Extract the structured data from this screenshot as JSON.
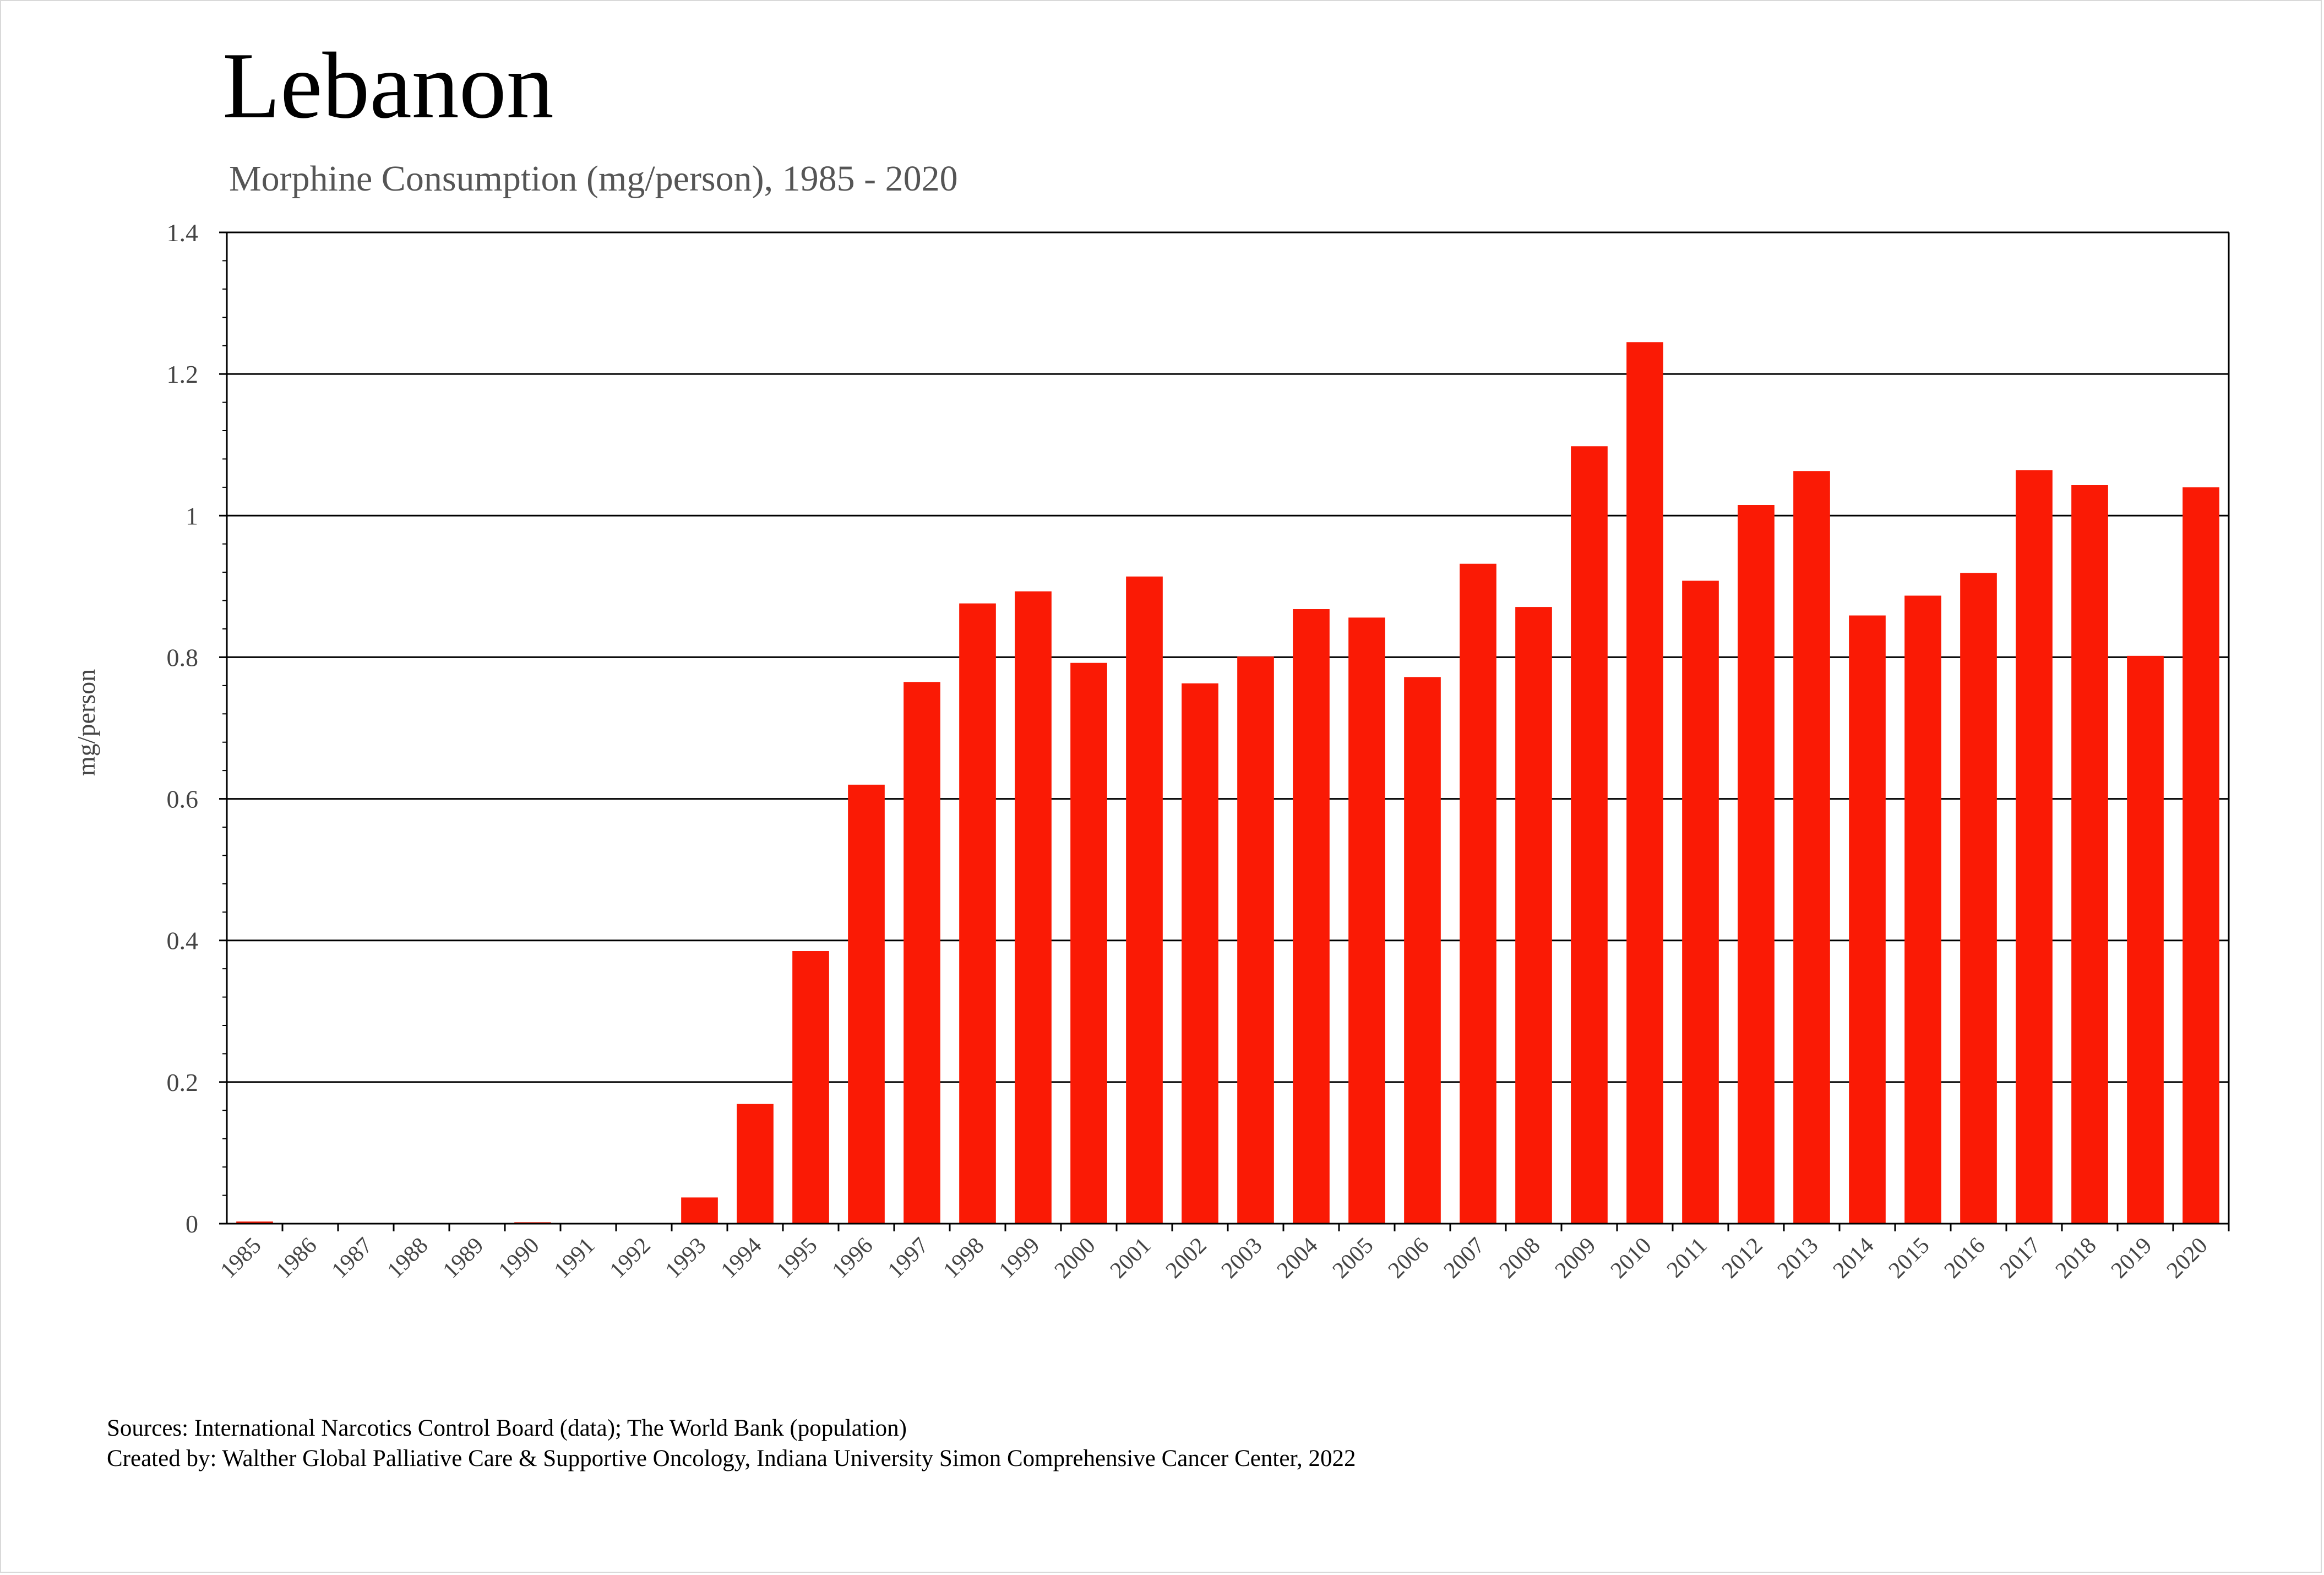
{
  "page": {
    "title": "Lebanon",
    "subtitle": "Morphine Consumption (mg/person), 1985 - 2020",
    "sources_line": "Sources: International Narcotics Control Board (data); The World Bank (population)",
    "credits_line": "Created by: Walther  Global Palliative Care & Supportive Oncology, Indiana University Simon Comprehensive Cancer Center, 2022"
  },
  "colors": {
    "bar": "#fa1a05",
    "gridline": "#000000",
    "axis": "#000000",
    "tick_text": "#444444"
  },
  "chart_data": {
    "type": "bar",
    "title": "Lebanon",
    "subtitle": "Morphine Consumption (mg/person), 1985 - 2020",
    "xlabel": "",
    "ylabel": "mg/person",
    "ylim": [
      0,
      1.4
    ],
    "yticks": [
      0,
      0.2,
      0.4,
      0.6,
      0.8,
      1,
      1.2,
      1.4
    ],
    "ytick_labels": [
      "0",
      "0.2",
      "0.4",
      "0.6",
      "0.8",
      "1",
      "1.2",
      "1.4"
    ],
    "grid": true,
    "legend": "none",
    "categories": [
      "1985",
      "1986",
      "1987",
      "1988",
      "1989",
      "1990",
      "1991",
      "1992",
      "1993",
      "1994",
      "1995",
      "1996",
      "1997",
      "1998",
      "1999",
      "2000",
      "2001",
      "2002",
      "2003",
      "2004",
      "2005",
      "2006",
      "2007",
      "2008",
      "2009",
      "2010",
      "2011",
      "2012",
      "2013",
      "2014",
      "2015",
      "2016",
      "2017",
      "2018",
      "2019",
      "2020"
    ],
    "series": [
      {
        "name": "Morphine Consumption (mg/person)",
        "values": [
          0.003,
          0,
          0,
          0,
          0,
          0.002,
          0,
          0,
          0.037,
          0.169,
          0.385,
          0.62,
          0.765,
          0.876,
          0.893,
          0.792,
          0.914,
          0.763,
          0.801,
          0.868,
          0.856,
          0.772,
          0.932,
          0.871,
          1.098,
          1.245,
          0.908,
          1.015,
          1.063,
          0.859,
          0.887,
          0.919,
          1.064,
          1.043,
          0.802,
          1.04
        ]
      }
    ]
  }
}
